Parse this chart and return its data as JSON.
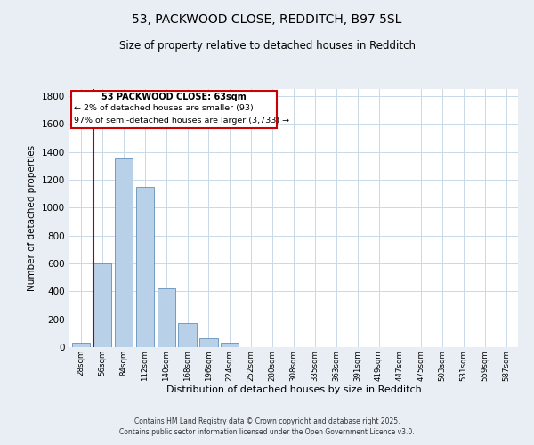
{
  "title1": "53, PACKWOOD CLOSE, REDDITCH, B97 5SL",
  "title2": "Size of property relative to detached houses in Redditch",
  "xlabel": "Distribution of detached houses by size in Redditch",
  "ylabel": "Number of detached properties",
  "categories": [
    "28sqm",
    "56sqm",
    "84sqm",
    "112sqm",
    "140sqm",
    "168sqm",
    "196sqm",
    "224sqm",
    "252sqm",
    "280sqm",
    "308sqm",
    "335sqm",
    "363sqm",
    "391sqm",
    "419sqm",
    "447sqm",
    "475sqm",
    "503sqm",
    "531sqm",
    "559sqm",
    "587sqm"
  ],
  "values": [
    35,
    600,
    1350,
    1150,
    420,
    175,
    65,
    30,
    0,
    0,
    0,
    0,
    0,
    0,
    0,
    0,
    0,
    0,
    0,
    0,
    0
  ],
  "bar_color": "#b8d0e8",
  "bar_edge_color": "#6090bb",
  "vline_color": "#aa0000",
  "annotation_title": "53 PACKWOOD CLOSE: 63sqm",
  "annotation_line2": "← 2% of detached houses are smaller (93)",
  "annotation_line3": "97% of semi-detached houses are larger (3,733) →",
  "annotation_box_color": "#cc0000",
  "ylim": [
    0,
    1850
  ],
  "yticks": [
    0,
    200,
    400,
    600,
    800,
    1000,
    1200,
    1400,
    1600,
    1800
  ],
  "footer1": "Contains HM Land Registry data © Crown copyright and database right 2025.",
  "footer2": "Contains public sector information licensed under the Open Government Licence v3.0.",
  "bg_color": "#e8eef4",
  "plot_bg_color": "#ffffff",
  "grid_color": "#c8d8e8"
}
